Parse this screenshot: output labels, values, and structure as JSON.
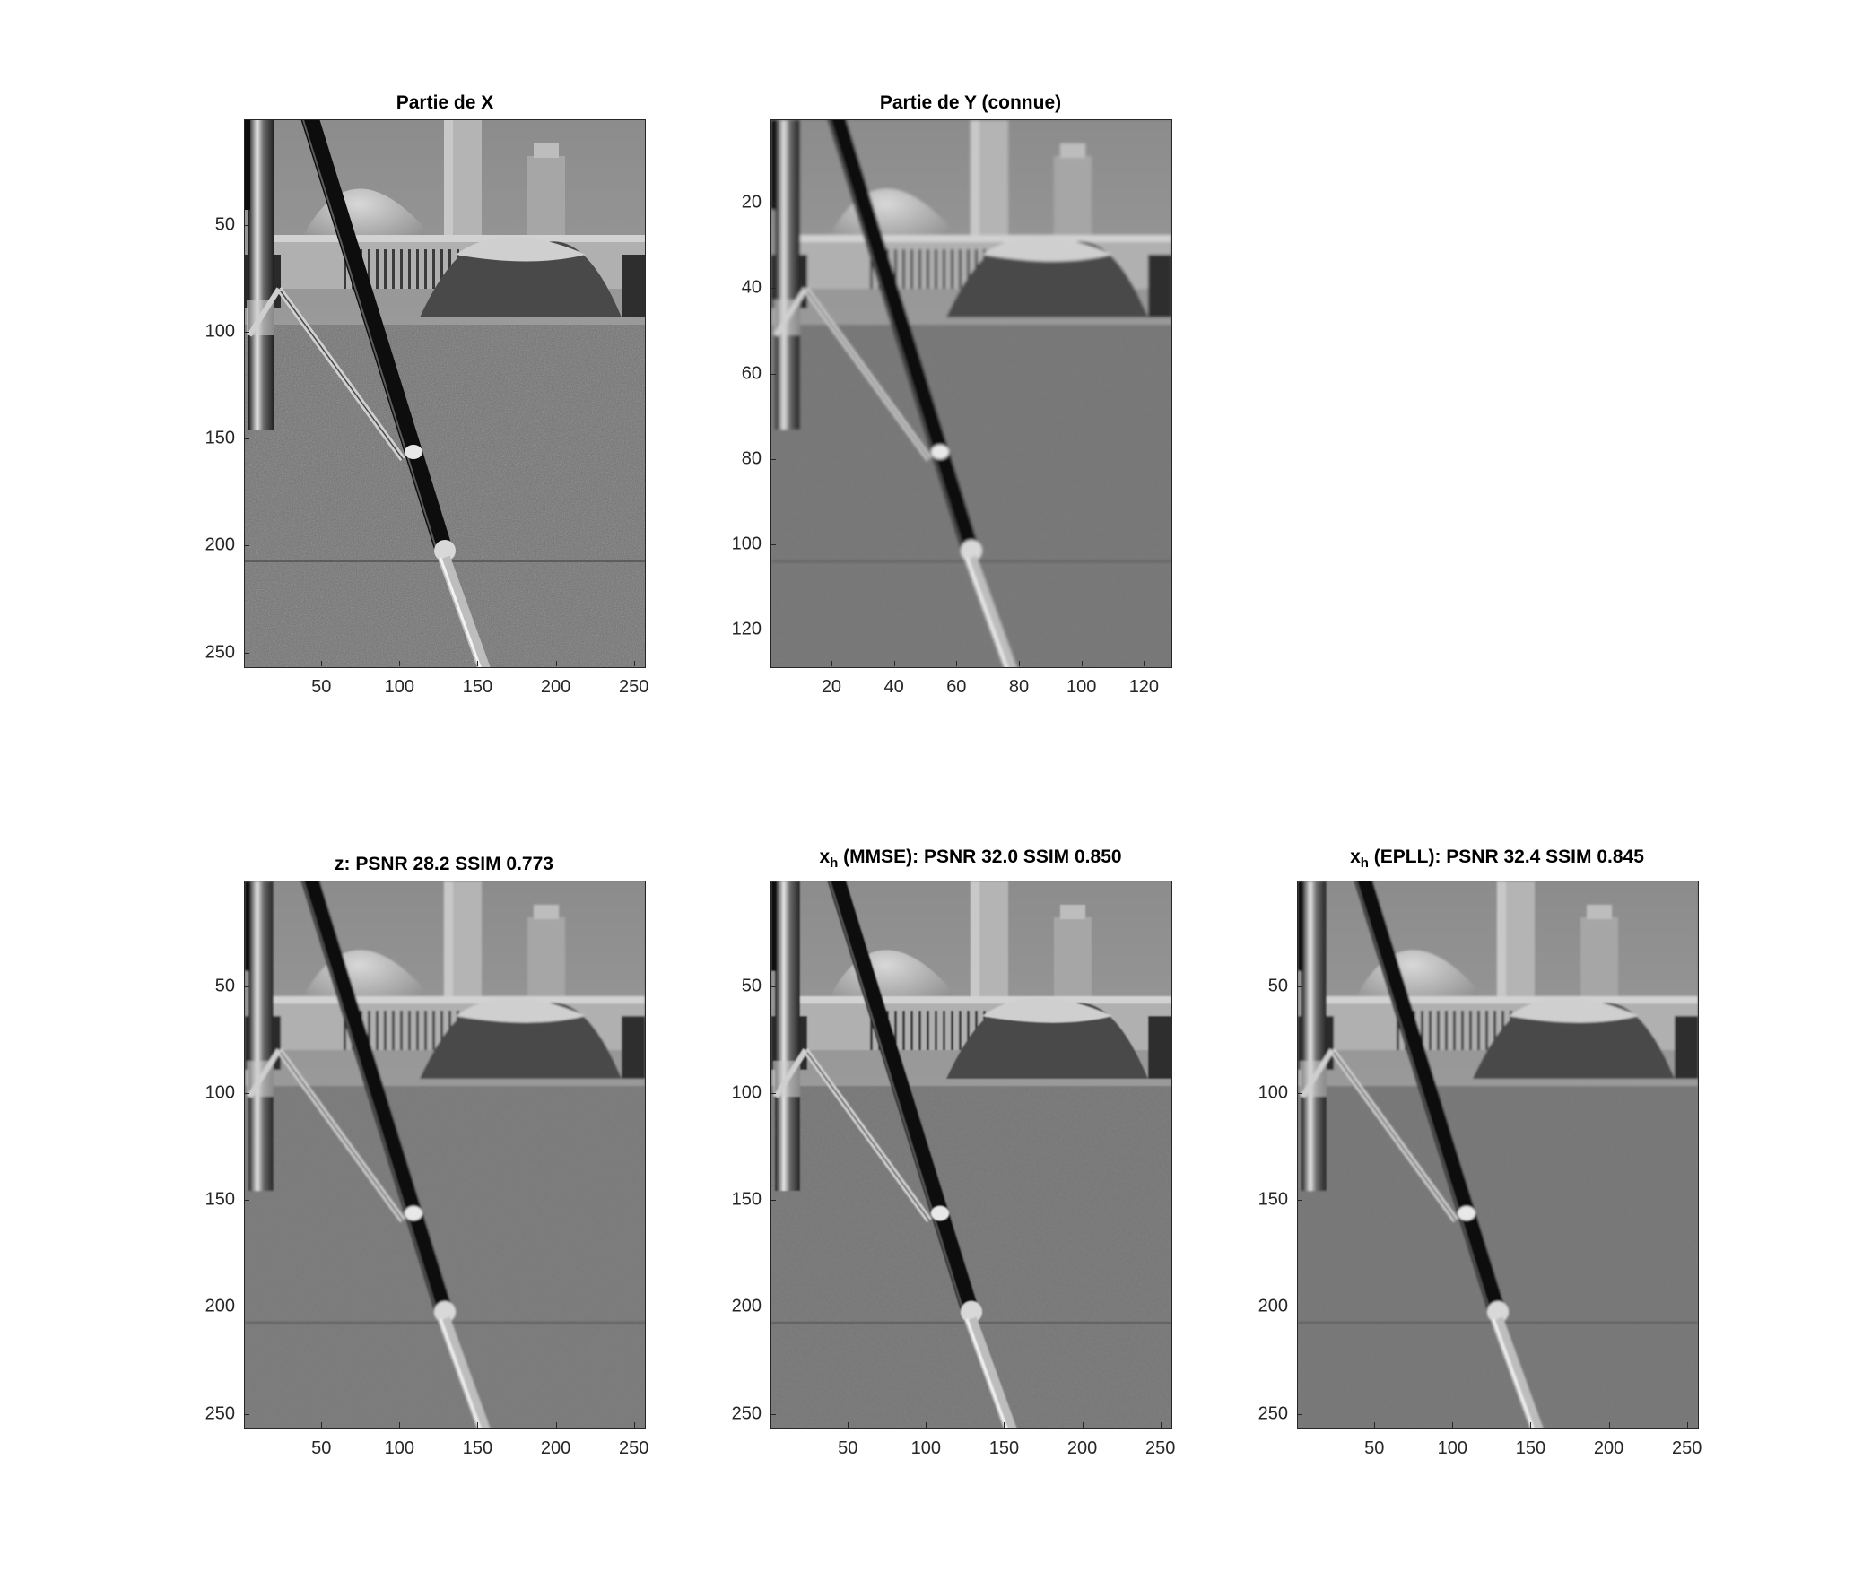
{
  "figure": {
    "panels": [
      {
        "id": "x",
        "title_main": "Partie de X",
        "title_sub": "",
        "title_rest": "",
        "size": 256,
        "xticks": [
          50,
          100,
          150,
          200,
          250
        ],
        "xtick_labels": [
          "50",
          "100",
          "150",
          "200",
          "250"
        ],
        "yticks": [
          50,
          100,
          150,
          200,
          250
        ],
        "ytick_labels": [
          "50",
          "100",
          "150",
          "200",
          "250"
        ]
      },
      {
        "id": "y",
        "title_main": "Partie de Y (connue)",
        "title_sub": "",
        "title_rest": "",
        "size": 128,
        "xticks": [
          20,
          40,
          60,
          80,
          100,
          120
        ],
        "xtick_labels": [
          "20",
          "40",
          "60",
          "80",
          "100",
          "120"
        ],
        "yticks": [
          20,
          40,
          60,
          80,
          100,
          120
        ],
        "ytick_labels": [
          "20",
          "40",
          "60",
          "80",
          "100",
          "120"
        ]
      },
      {
        "id": "z",
        "title_main": "z: PSNR 28.2 SSIM 0.773",
        "title_sub": "",
        "title_rest": "",
        "size": 256,
        "xticks": [
          50,
          100,
          150,
          200,
          250
        ],
        "xtick_labels": [
          "50",
          "100",
          "150",
          "200",
          "250"
        ],
        "yticks": [
          50,
          100,
          150,
          200,
          250
        ],
        "ytick_labels": [
          "50",
          "100",
          "150",
          "200",
          "250"
        ]
      },
      {
        "id": "mmse",
        "title_main": "x",
        "title_sub": "h",
        "title_rest": " (MMSE): PSNR 32.0 SSIM 0.850",
        "size": 256,
        "xticks": [
          50,
          100,
          150,
          200,
          250
        ],
        "xtick_labels": [
          "50",
          "100",
          "150",
          "200",
          "250"
        ],
        "yticks": [
          50,
          100,
          150,
          200,
          250
        ],
        "ytick_labels": [
          "50",
          "100",
          "150",
          "200",
          "250"
        ]
      },
      {
        "id": "epll",
        "title_main": "x",
        "title_sub": "h",
        "title_rest": " (EPLL): PSNR 32.4 SSIM 0.845",
        "size": 256,
        "xticks": [
          50,
          100,
          150,
          200,
          250
        ],
        "xtick_labels": [
          "50",
          "100",
          "150",
          "200",
          "250"
        ],
        "yticks": [
          50,
          100,
          150,
          200,
          250
        ],
        "ytick_labels": [
          "50",
          "100",
          "150",
          "200",
          "250"
        ]
      }
    ]
  }
}
